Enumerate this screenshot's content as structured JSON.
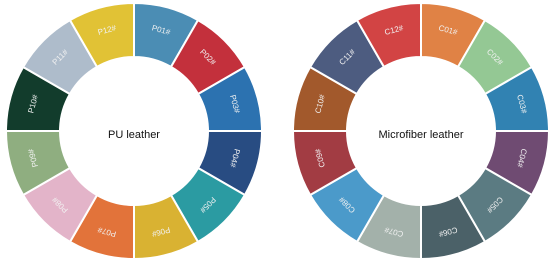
{
  "rings": [
    {
      "center_label": "PU leather",
      "segments": [
        {
          "label": "P01#",
          "color": "#4b8db4"
        },
        {
          "label": "P02#",
          "color": "#c3303c"
        },
        {
          "label": "P03#",
          "color": "#2c72b0"
        },
        {
          "label": "P04#",
          "color": "#284c82"
        },
        {
          "label": "P05#",
          "color": "#2b9ba2"
        },
        {
          "label": "P06#",
          "color": "#d9b232"
        },
        {
          "label": "P07#",
          "color": "#e2733a"
        },
        {
          "label": "P08#",
          "color": "#e3b4c9"
        },
        {
          "label": "P09#",
          "color": "#8fae80"
        },
        {
          "label": "P10#",
          "color": "#123c2c"
        },
        {
          "label": "P11#",
          "color": "#aebccb"
        },
        {
          "label": "P12#",
          "color": "#e1c235"
        }
      ]
    },
    {
      "center_label": "Microfiber leather",
      "segments": [
        {
          "label": "C01#",
          "color": "#e08245"
        },
        {
          "label": "C02#",
          "color": "#94c894"
        },
        {
          "label": "C03#",
          "color": "#3182b2"
        },
        {
          "label": "C04#",
          "color": "#6f4b72"
        },
        {
          "label": "C05#",
          "color": "#5b7b82"
        },
        {
          "label": "C06#",
          "color": "#4b6168"
        },
        {
          "label": "C07#",
          "color": "#a3b1aa"
        },
        {
          "label": "C08#",
          "color": "#4b9aca"
        },
        {
          "label": "C09#",
          "color": "#a23c43"
        },
        {
          "label": "C10#",
          "color": "#a2592c"
        },
        {
          "label": "C11#",
          "color": "#4d5c80"
        },
        {
          "label": "C12#",
          "color": "#d24444"
        }
      ]
    }
  ]
}
